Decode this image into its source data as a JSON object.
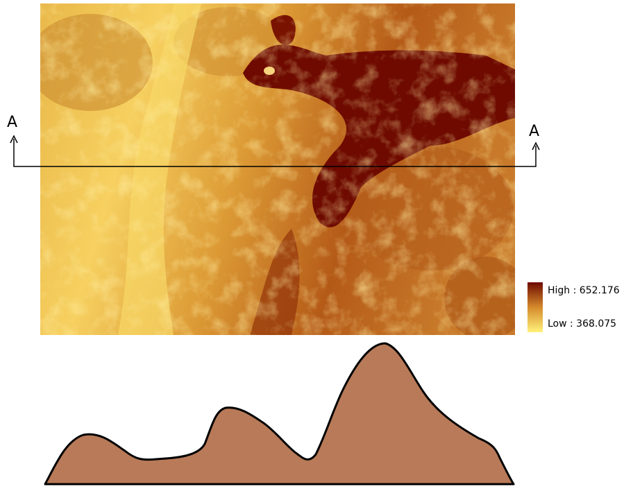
{
  "section_labels": [
    "A",
    "A"
  ],
  "legend": {
    "high": "High : 652.176",
    "low": "Low : 368.075"
  }
}
